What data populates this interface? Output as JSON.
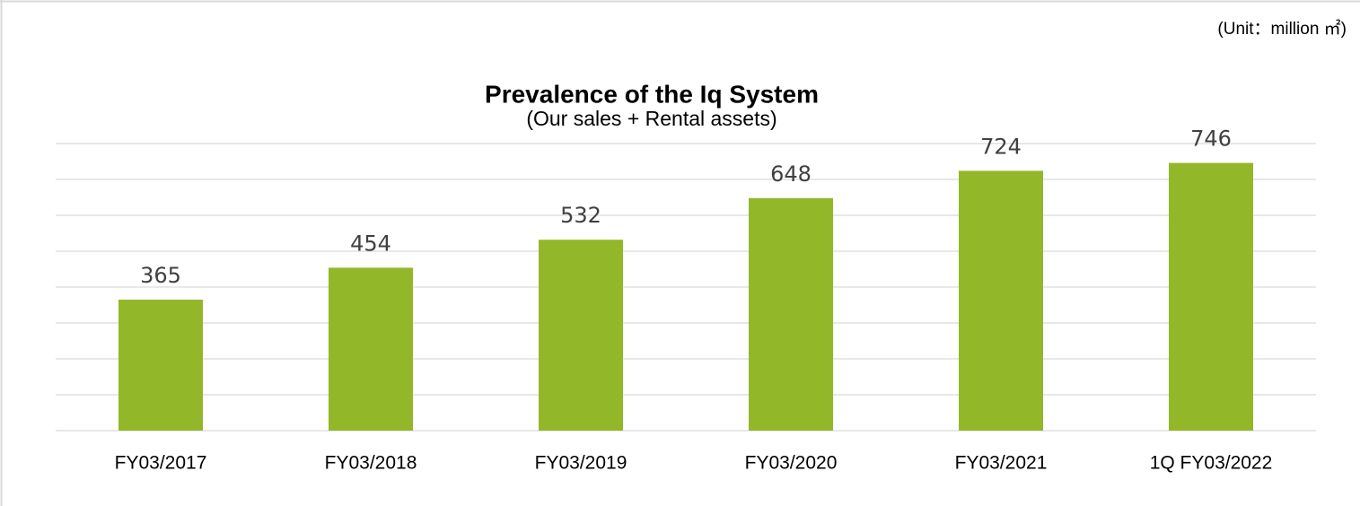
{
  "chart_data": {
    "type": "bar",
    "title": "Prevalence of the Iq System",
    "subtitle": "(Our sales + Rental assets)",
    "unit_note": "(Unit：million ㎡)",
    "categories": [
      "FY03/2017",
      "FY03/2018",
      "FY03/2019",
      "FY03/2020",
      "FY03/2021",
      "1Q FY03/2022"
    ],
    "values": [
      365,
      454,
      532,
      648,
      724,
      746
    ],
    "color": "#92b82a",
    "ylim": [
      0,
      800
    ],
    "yticks": [
      0,
      100,
      200,
      300,
      400,
      500,
      600,
      700,
      800
    ],
    "grid": true
  }
}
